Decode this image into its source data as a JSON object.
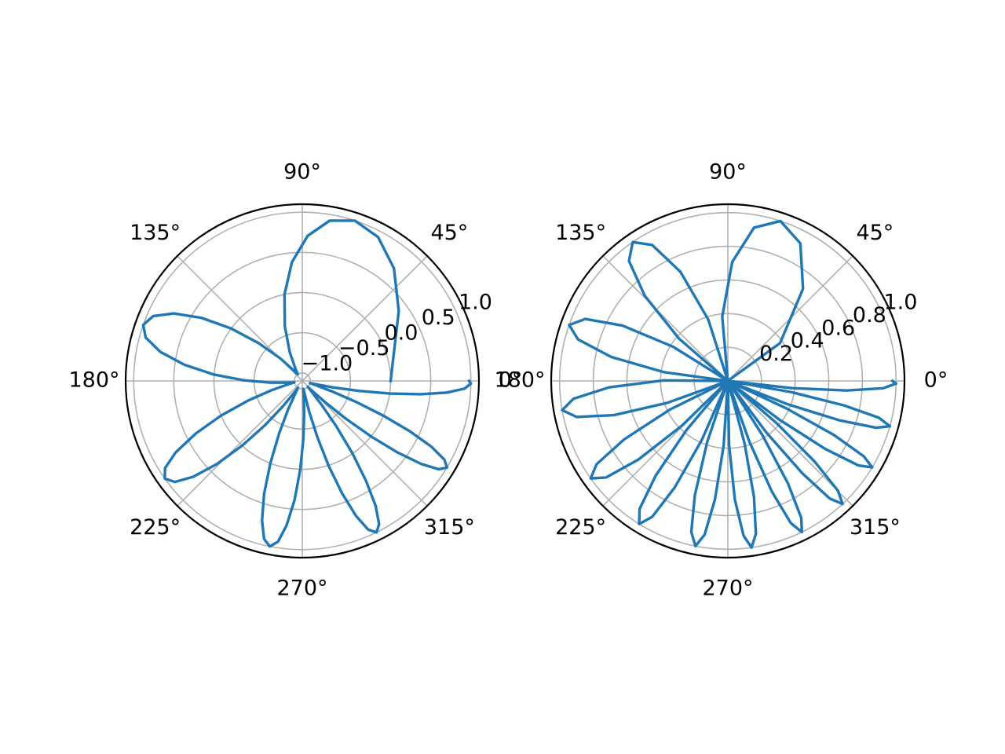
{
  "chart_data": [
    {
      "type": "polar",
      "color": "#1f77b4",
      "grid": true,
      "xlim": [
        0,
        360
      ],
      "xticks": [
        {
          "value": 0,
          "label": "0°"
        },
        {
          "value": 45,
          "label": "45°"
        },
        {
          "value": 90,
          "label": "90°"
        },
        {
          "value": 135,
          "label": "135°"
        },
        {
          "value": 180,
          "label": "180°"
        },
        {
          "value": 225,
          "label": "225°"
        },
        {
          "value": 270,
          "label": "270°"
        },
        {
          "value": 315,
          "label": "315°"
        }
      ],
      "ylim": [
        -1.1,
        1.1
      ],
      "yticks": [
        {
          "value": -1,
          "label": "−1.0"
        },
        {
          "value": -0.5,
          "label": "−0.5"
        },
        {
          "value": 0,
          "label": "0.0"
        },
        0.5,
        {
          "value": 1,
          "label": "1.0"
        }
      ],
      "x": [
        0,
        35.9,
        50.8,
        62.2,
        71.8,
        80.3,
        87.9,
        95.0,
        101.6,
        107.7,
        113.5,
        119.1,
        124.4,
        129.5,
        134.3,
        139.1,
        143.6,
        148.0,
        152.3,
        156.5,
        160.6,
        164.5,
        168.4,
        172.2,
        175.9,
        179.5,
        183.1,
        186.6,
        190.0,
        193.4,
        196.7,
        199.9,
        203.1,
        206.3,
        209.4,
        212.4,
        215.4,
        218.4,
        221.3,
        224.2,
        227.1,
        229.9,
        232.7,
        235.4,
        238.2,
        240.9,
        243.5,
        246.2,
        248.8,
        251.3,
        253.9,
        256.4,
        258.9,
        261.4,
        263.8,
        266.3,
        268.7,
        271.1,
        273.4,
        275.8,
        278.1,
        280.4,
        282.7,
        285.0,
        287.2,
        289.5,
        291.7,
        293.9,
        296.1,
        298.2,
        300.4,
        302.5,
        304.7,
        306.8,
        308.9,
        310.9,
        313.0,
        315.1,
        317.1,
        319.1,
        321.1,
        323.1,
        325.1,
        327.1,
        329.1,
        331.0,
        333.0,
        334.9,
        336.8,
        338.7,
        340.6,
        342.5,
        344.4,
        346.3,
        348.1,
        350.0,
        351.8,
        353.6,
        355.4,
        357.3,
        359.1,
        360
      ],
      "values": [
        0,
        0.383,
        0.707,
        0.924,
        1,
        0.924,
        0.707,
        0.383,
        0,
        -0.383,
        -0.707,
        -0.924,
        -1,
        -0.924,
        -0.707,
        -0.383,
        0,
        0.383,
        0.707,
        0.924,
        1,
        0.924,
        0.707,
        0.383,
        0,
        -0.383,
        -0.707,
        -0.924,
        -1,
        -0.924,
        -0.707,
        -0.383,
        0,
        0.383,
        0.707,
        0.924,
        1,
        0.924,
        0.707,
        0.383,
        0,
        -0.383,
        -0.707,
        -0.924,
        -1,
        -0.924,
        -0.707,
        -0.383,
        0,
        0.383,
        0.707,
        0.924,
        1,
        0.924,
        0.707,
        0.383,
        0,
        -0.383,
        -0.707,
        -0.924,
        -1,
        -0.924,
        -0.707,
        -0.383,
        0,
        0.383,
        0.707,
        0.924,
        1,
        0.924,
        0.707,
        0.383,
        0,
        -0.383,
        -0.707,
        -0.924,
        -1,
        -0.924,
        -0.707,
        -0.383,
        0,
        0.383,
        0.707,
        0.924,
        1,
        0.924,
        0.707,
        0.383,
        0,
        -0.383,
        -0.707,
        -0.924,
        -1,
        -0.924,
        -0.707,
        -0.383,
        0,
        0.383,
        0.707,
        0.924,
        1,
        0.978
      ]
    },
    {
      "type": "polar",
      "color": "#1f77b4",
      "grid": true,
      "xlim": [
        0,
        360
      ],
      "xticks": [
        {
          "value": 0,
          "label": "0°"
        },
        {
          "value": 45,
          "label": "45°"
        },
        {
          "value": 90,
          "label": "90°"
        },
        {
          "value": 135,
          "label": "135°"
        },
        {
          "value": 180,
          "label": "180°"
        },
        {
          "value": 225,
          "label": "225°"
        },
        {
          "value": 270,
          "label": "270°"
        },
        {
          "value": 315,
          "label": "315°"
        }
      ],
      "ylim": [
        0,
        1.05
      ],
      "yticks": [
        0.2,
        0.4,
        0.6,
        0.8,
        {
          "value": 1,
          "label": "1.0"
        }
      ],
      "x": [
        0,
        35.9,
        50.8,
        62.2,
        71.8,
        80.3,
        87.9,
        95.0,
        101.6,
        107.7,
        113.5,
        119.1,
        124.4,
        129.5,
        134.3,
        139.1,
        143.6,
        148.0,
        152.3,
        156.5,
        160.6,
        164.5,
        168.4,
        172.2,
        175.9,
        179.5,
        183.1,
        186.6,
        190.0,
        193.4,
        196.7,
        199.9,
        203.1,
        206.3,
        209.4,
        212.4,
        215.4,
        218.4,
        221.3,
        224.2,
        227.1,
        229.9,
        232.7,
        235.4,
        238.2,
        240.9,
        243.5,
        246.2,
        248.8,
        251.3,
        253.9,
        256.4,
        258.9,
        261.4,
        263.8,
        266.3,
        268.7,
        271.1,
        273.4,
        275.8,
        278.1,
        280.4,
        282.7,
        285.0,
        287.2,
        289.5,
        291.7,
        293.9,
        296.1,
        298.2,
        300.4,
        302.5,
        304.7,
        306.8,
        308.9,
        310.9,
        313.0,
        315.1,
        317.1,
        319.1,
        321.1,
        323.1,
        325.1,
        327.1,
        329.1,
        331.0,
        333.0,
        334.9,
        336.8,
        338.7,
        340.6,
        342.5,
        344.4,
        346.3,
        348.1,
        350.0,
        351.8,
        353.6,
        355.4,
        357.3,
        359.1,
        360
      ],
      "values": [
        0,
        0.383,
        0.707,
        0.924,
        1,
        0.924,
        0.707,
        0.383,
        0,
        0.383,
        0.707,
        0.924,
        1,
        0.924,
        0.707,
        0.383,
        0,
        0.383,
        0.707,
        0.924,
        1,
        0.924,
        0.707,
        0.383,
        0,
        0.383,
        0.707,
        0.924,
        1,
        0.924,
        0.707,
        0.383,
        0,
        0.383,
        0.707,
        0.924,
        1,
        0.924,
        0.707,
        0.383,
        0,
        0.383,
        0.707,
        0.924,
        1,
        0.924,
        0.707,
        0.383,
        0,
        0.383,
        0.707,
        0.924,
        1,
        0.924,
        0.707,
        0.383,
        0,
        0.383,
        0.707,
        0.924,
        1,
        0.924,
        0.707,
        0.383,
        0,
        0.383,
        0.707,
        0.924,
        1,
        0.924,
        0.707,
        0.383,
        0,
        0.383,
        0.707,
        0.924,
        1,
        0.924,
        0.707,
        0.383,
        0,
        0.383,
        0.707,
        0.924,
        1,
        0.924,
        0.707,
        0.383,
        0,
        0.383,
        0.707,
        0.924,
        1,
        0.924,
        0.707,
        0.383,
        0,
        0.383,
        0.707,
        0.924,
        1,
        0.978
      ]
    }
  ]
}
